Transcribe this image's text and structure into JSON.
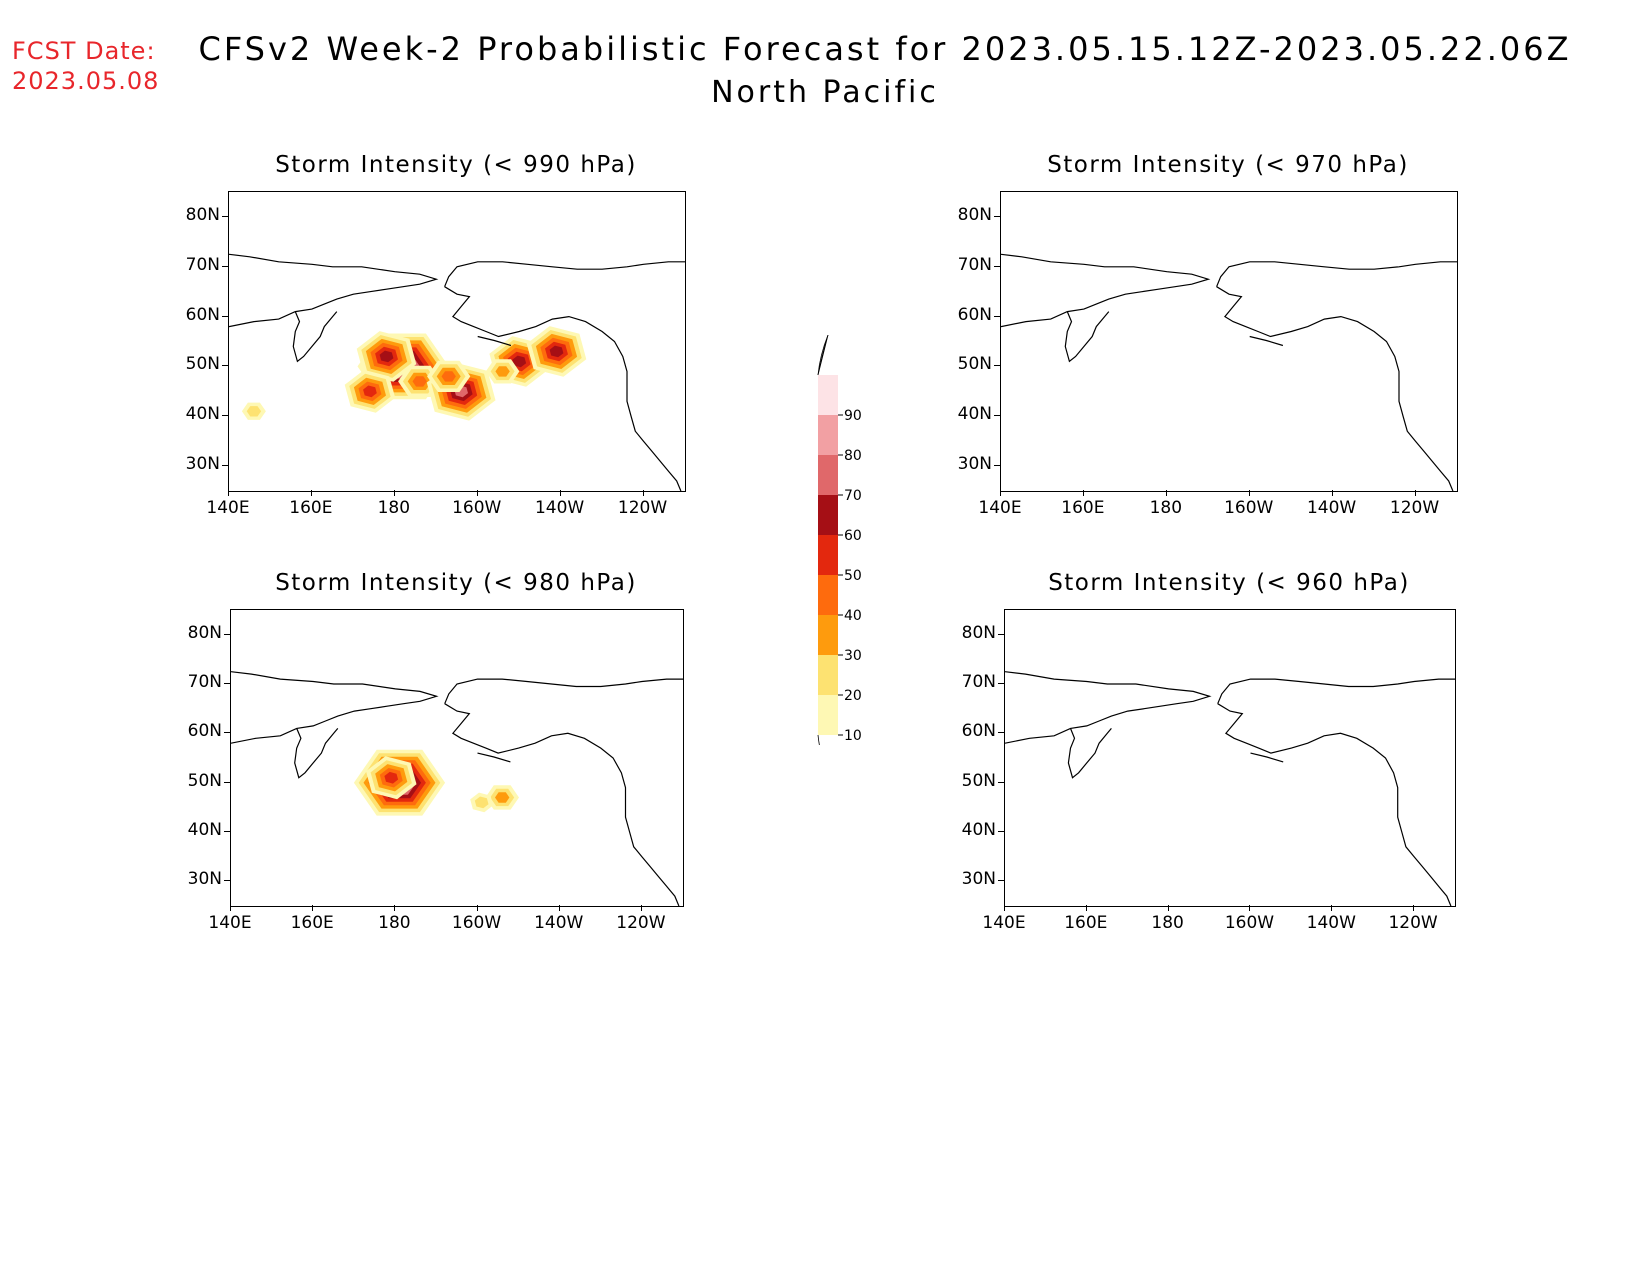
{
  "fcst_date": {
    "label": "FCST Date:",
    "value": "2023.05.08"
  },
  "title": "CFSv2 Week-2 Probabilistic Forecast for 2023.05.15.12Z-2023.05.22.06Z",
  "region": "North Pacific",
  "lat_ticks": [
    "80N",
    "70N",
    "60N",
    "50N",
    "40N",
    "30N"
  ],
  "lon_ticks": [
    "140E",
    "160E",
    "180",
    "160W",
    "140W",
    "120W"
  ],
  "panels": [
    {
      "id": "p990",
      "title": "Storm Intensity (< 990 hPa)"
    },
    {
      "id": "p970",
      "title": "Storm Intensity (< 970 hPa)"
    },
    {
      "id": "p980",
      "title": "Storm Intensity (< 980 hPa)"
    },
    {
      "id": "p960",
      "title": "Storm Intensity (< 960 hPa)"
    }
  ],
  "colorbar": {
    "labels": [
      "90",
      "80",
      "70",
      "60",
      "50",
      "40",
      "30",
      "20",
      "10"
    ],
    "colors": [
      "#fde3e6",
      "#f2a0a3",
      "#e0686a",
      "#a50f15",
      "#e3280e",
      "#fe6b0d",
      "#fe9b0d",
      "#fde271",
      "#fef8b4"
    ]
  },
  "chart_data": {
    "type": "heatmap",
    "levels": [
      10,
      20,
      30,
      40,
      50,
      60,
      70,
      80,
      90
    ],
    "xlim": [
      "140E",
      "110W"
    ],
    "ylim": [
      "25N",
      "85N"
    ],
    "blobs": {
      "p990": [
        {
          "lon": 182,
          "lat": 50,
          "p": 90
        },
        {
          "lon": 178,
          "lat": 52,
          "p": 60
        },
        {
          "lon": 186,
          "lat": 47,
          "p": 40
        },
        {
          "lon": 196,
          "lat": 45,
          "p": 70
        },
        {
          "lon": 193,
          "lat": 48,
          "p": 40
        },
        {
          "lon": 210,
          "lat": 51,
          "p": 60
        },
        {
          "lon": 206,
          "lat": 49,
          "p": 30
        },
        {
          "lon": 219,
          "lat": 53,
          "p": 60
        },
        {
          "lon": 146,
          "lat": 41,
          "p": 20
        },
        {
          "lon": 174,
          "lat": 45,
          "p": 50
        }
      ],
      "p980": [
        {
          "lon": 181,
          "lat": 50,
          "p": 90
        },
        {
          "lon": 179,
          "lat": 51,
          "p": 50
        },
        {
          "lon": 206,
          "lat": 47,
          "p": 30
        },
        {
          "lon": 201,
          "lat": 46,
          "p": 20
        }
      ],
      "p970": [],
      "p960": []
    }
  }
}
